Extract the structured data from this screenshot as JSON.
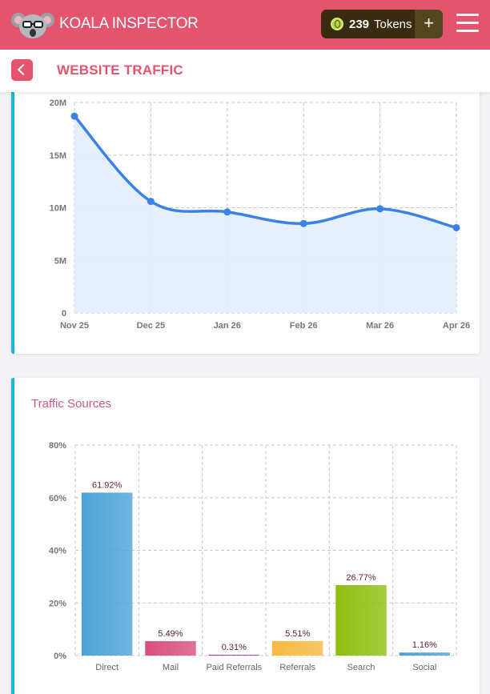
{
  "header": {
    "brand": "KOALA INSPECTOR",
    "tokens_count": "239",
    "tokens_label": "Tokens",
    "add_label": "+",
    "accent_color": "#e4546f"
  },
  "subheader": {
    "title": "WEBSITE TRAFFIC"
  },
  "icons": [
    "koala-logo-icon",
    "coin-icon",
    "plus-icon",
    "hamburger-menu-icon",
    "back-arrow-icon"
  ],
  "traffic_card": {
    "accent_color": "#1ab7d8"
  },
  "sources_card": {
    "title": "Traffic Sources"
  },
  "chart_data": [
    {
      "type": "area",
      "title": "",
      "xlabel": "",
      "ylabel": "",
      "categories": [
        "Nov 25",
        "Dec 25",
        "Jan 26",
        "Feb 26",
        "Mar 26",
        "Apr 26"
      ],
      "series": [
        {
          "values": [
            18.7,
            10.6,
            9.6,
            8.5,
            9.9,
            8.1
          ],
          "color": "#3b82e6"
        }
      ],
      "ylim": [
        0,
        20
      ],
      "yticks": [
        0,
        5,
        10,
        15,
        20
      ],
      "yticklabels": [
        "0",
        "5M",
        "10M",
        "15M",
        "20M"
      ],
      "grid": true
    },
    {
      "type": "bar",
      "title": "Traffic Sources",
      "categories": [
        "Direct",
        "Mail",
        "Paid Referrals",
        "Referrals",
        "Search",
        "Social"
      ],
      "values": [
        61.92,
        5.49,
        0.31,
        5.51,
        26.77,
        1.16
      ],
      "data_labels": [
        "61.92%",
        "5.49%",
        "0.31%",
        "5.51%",
        "26.77%",
        "1.16%"
      ],
      "colors": [
        "#4ba3d8",
        "#d94f7c",
        "#8e3a9e",
        "#f7b940",
        "#8fbf10",
        "#4ba3d8"
      ],
      "ylim": [
        0,
        80
      ],
      "yticks": [
        0,
        20,
        40,
        60,
        80
      ],
      "yticklabels": [
        "0%",
        "20%",
        "40%",
        "60%",
        "80%"
      ],
      "grid": true
    }
  ]
}
